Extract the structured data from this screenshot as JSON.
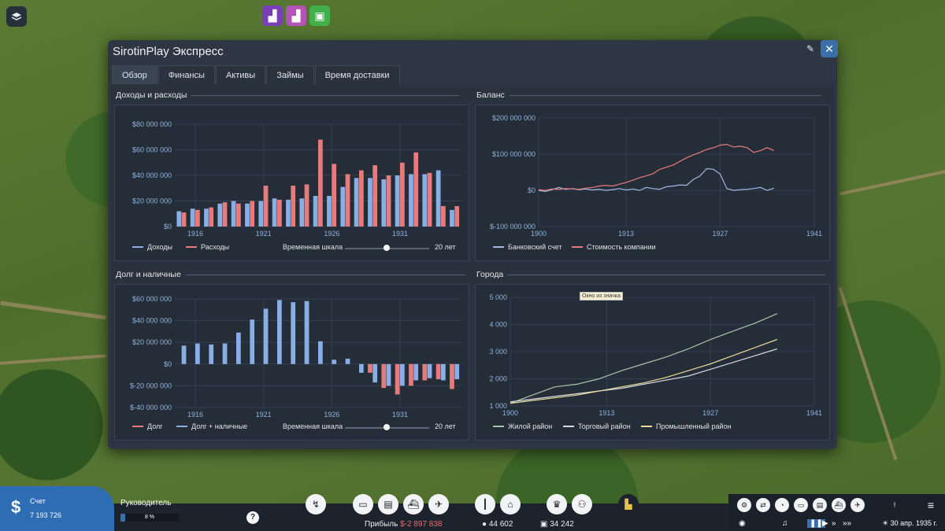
{
  "window": {
    "title": "SirotinPlay Экспресс",
    "tabs": [
      "Обзор",
      "Финансы",
      "Активы",
      "Займы",
      "Время доставки"
    ],
    "active_tab": 0
  },
  "sections": {
    "income": {
      "title": "Доходы и расходы",
      "legend": [
        "Доходы",
        "Расходы"
      ],
      "slider_label": "Временная шкала",
      "slider_value": "20 лет"
    },
    "balance": {
      "title": "Баланс",
      "legend": [
        "Банковский счет",
        "Стоимость компании"
      ]
    },
    "debt": {
      "title": "Долг и наличные",
      "legend": [
        "Долг",
        "Долг + наличные"
      ],
      "slider_label": "Временная шкала",
      "slider_value": "20 лет"
    },
    "cities": {
      "title": "Города",
      "legend": [
        "Жилой район",
        "Торговый район",
        "Промышленный район"
      ],
      "tooltip": "Окно из значка"
    }
  },
  "colors": {
    "blue": "#88aee6",
    "red": "#e57b7b",
    "green": "#a8c7a8",
    "white": "#d6dbe2",
    "yellow": "#e9dc9a",
    "accent": "#2e6db4"
  },
  "chart_data": [
    {
      "type": "bar",
      "ytick_labels": [
        "$0",
        "$20 000 000",
        "$40 000 000",
        "$60 000 000",
        "$80 000 000"
      ],
      "ylim": [
        0,
        80000000
      ],
      "xtick_labels": [
        "1916",
        "1921",
        "1926",
        "1931"
      ],
      "categories": [
        1915,
        1916,
        1917,
        1918,
        1919,
        1920,
        1921,
        1922,
        1923,
        1924,
        1925,
        1926,
        1927,
        1928,
        1929,
        1930,
        1931,
        1932,
        1933,
        1934,
        1935
      ],
      "series": [
        {
          "name": "Доходы",
          "color": "#88aee6",
          "values": [
            12000000,
            14000000,
            14000000,
            18000000,
            20000000,
            18000000,
            20000000,
            22000000,
            21000000,
            22000000,
            24000000,
            24000000,
            31000000,
            38000000,
            38000000,
            37000000,
            40000000,
            41000000,
            41000000,
            44000000,
            13000000
          ]
        },
        {
          "name": "Расходы",
          "color": "#e57b7b",
          "values": [
            11000000,
            13000000,
            15000000,
            19000000,
            18000000,
            20000000,
            32000000,
            21000000,
            32000000,
            33000000,
            68000000,
            49000000,
            41000000,
            44000000,
            48000000,
            40000000,
            50000000,
            58000000,
            42000000,
            16000000,
            16000000
          ]
        }
      ]
    },
    {
      "type": "line",
      "ytick_labels": [
        "$-100 000 000",
        "$0",
        "$100 000 000",
        "$200 000 000"
      ],
      "ylim": [
        -100000000,
        200000000
      ],
      "xlim": [
        1900,
        1941
      ],
      "xtick_labels": [
        "1900",
        "1913",
        "1927",
        "1941"
      ],
      "series": [
        {
          "name": "Банковский счет",
          "color": "#9fb8e0",
          "x": [
            1900,
            1901,
            1902,
            1903,
            1904,
            1905,
            1906,
            1907,
            1908,
            1909,
            1910,
            1911,
            1912,
            1913,
            1914,
            1915,
            1916,
            1917,
            1918,
            1919,
            1920,
            1921,
            1922,
            1923,
            1924,
            1925,
            1926,
            1927,
            1928,
            1929,
            1930,
            1931,
            1932,
            1933,
            1934,
            1935
          ],
          "values": [
            0,
            -3000000,
            2000000,
            8000000,
            3000000,
            5000000,
            2000000,
            4000000,
            1000000,
            3000000,
            0,
            2000000,
            5000000,
            1000000,
            4000000,
            0,
            8000000,
            5000000,
            3000000,
            10000000,
            12000000,
            15000000,
            14000000,
            30000000,
            40000000,
            60000000,
            58000000,
            45000000,
            5000000,
            0,
            2000000,
            3000000,
            5000000,
            8000000,
            0,
            6000000
          ]
        },
        {
          "name": "Стоимость компании",
          "color": "#e57b7b",
          "x": [
            1900,
            1901,
            1902,
            1903,
            1904,
            1905,
            1906,
            1907,
            1908,
            1909,
            1910,
            1911,
            1912,
            1913,
            1914,
            1915,
            1916,
            1917,
            1918,
            1919,
            1920,
            1921,
            1922,
            1923,
            1924,
            1925,
            1926,
            1927,
            1928,
            1929,
            1930,
            1931,
            1932,
            1933,
            1934,
            1935
          ],
          "values": [
            2000000,
            0,
            4000000,
            3000000,
            5000000,
            4000000,
            3000000,
            6000000,
            8000000,
            12000000,
            14000000,
            12000000,
            17000000,
            22000000,
            28000000,
            35000000,
            40000000,
            46000000,
            58000000,
            64000000,
            70000000,
            80000000,
            90000000,
            98000000,
            105000000,
            113000000,
            118000000,
            125000000,
            127000000,
            120000000,
            122000000,
            118000000,
            105000000,
            110000000,
            118000000,
            110000000
          ]
        }
      ]
    },
    {
      "type": "bar",
      "ytick_labels": [
        "$-40 000 000",
        "$-20 000 000",
        "$0",
        "$20 000 000",
        "$40 000 000",
        "$60 000 000"
      ],
      "ylim": [
        -40000000,
        60000000
      ],
      "xtick_labels": [
        "1916",
        "1921",
        "1926",
        "1931"
      ],
      "categories": [
        1915,
        1916,
        1917,
        1918,
        1919,
        1920,
        1921,
        1922,
        1923,
        1924,
        1925,
        1926,
        1927,
        1928,
        1929,
        1930,
        1931,
        1932,
        1933,
        1934,
        1935
      ],
      "series": [
        {
          "name": "Долг",
          "color": "#e57b7b",
          "values": [
            0,
            0,
            0,
            0,
            0,
            0,
            0,
            0,
            0,
            0,
            0,
            0,
            0,
            0,
            -8000000,
            -22000000,
            -28000000,
            -20000000,
            -15000000,
            -14000000,
            -23000000
          ]
        },
        {
          "name": "Долг + наличные",
          "color": "#88aee6",
          "values": [
            17000000,
            19000000,
            18000000,
            19000000,
            29000000,
            41000000,
            51000000,
            59000000,
            57000000,
            58000000,
            21000000,
            4000000,
            5000000,
            -8000000,
            -17000000,
            -20000000,
            -20000000,
            -15000000,
            -13000000,
            -15000000,
            -14000000
          ]
        }
      ]
    },
    {
      "type": "line",
      "ytick_labels": [
        "1 000",
        "2 000",
        "3 000",
        "4 000",
        "5 000"
      ],
      "ylim": [
        1000,
        5000
      ],
      "xlim": [
        1900,
        1941
      ],
      "xtick_labels": [
        "1900",
        "1913",
        "1927",
        "1941"
      ],
      "series": [
        {
          "name": "Жилой район",
          "color": "#a8c7a8",
          "x": [
            1900,
            1903,
            1906,
            1909,
            1912,
            1915,
            1918,
            1921,
            1924,
            1927,
            1930,
            1933,
            1936
          ],
          "values": [
            1100,
            1400,
            1700,
            1800,
            2000,
            2300,
            2550,
            2800,
            3100,
            3450,
            3750,
            4050,
            4400
          ]
        },
        {
          "name": "Торговый район",
          "color": "#d6dbe2",
          "x": [
            1900,
            1903,
            1906,
            1909,
            1912,
            1915,
            1918,
            1921,
            1924,
            1927,
            1930,
            1933,
            1936
          ],
          "values": [
            1150,
            1250,
            1350,
            1450,
            1550,
            1650,
            1800,
            1950,
            2100,
            2350,
            2600,
            2850,
            3100
          ]
        },
        {
          "name": "Промышленный район",
          "color": "#e9dc9a",
          "x": [
            1900,
            1903,
            1906,
            1909,
            1912,
            1915,
            1918,
            1921,
            1924,
            1927,
            1930,
            1933,
            1936
          ],
          "values": [
            1100,
            1200,
            1300,
            1400,
            1550,
            1700,
            1850,
            2050,
            2300,
            2550,
            2850,
            3150,
            3450
          ]
        }
      ]
    }
  ],
  "bottom": {
    "account_label": "Счет",
    "account_value": "7 193 726",
    "leader_label": "Руководитель",
    "leader_pct_text": "8 %",
    "leader_pct": 0.08,
    "profit_label": "Прибыль",
    "profit_value": "$-2 897 838",
    "population": "44 602",
    "cargo": "34 242",
    "date": "30 апр. 1935 г."
  }
}
